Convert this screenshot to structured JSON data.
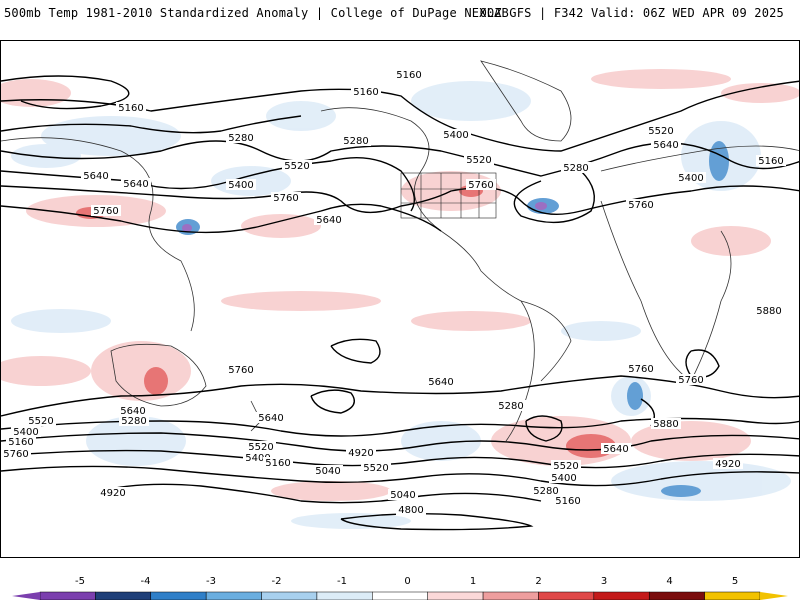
{
  "header": {
    "left_title": "500mb Temp 1981-2010 Standardized Anomaly | College of DuPage NEXLAB",
    "right_title": "00Z GFS | F342 Valid: 06Z WED APR 09 2025"
  },
  "map": {
    "contour_labels": [
      "5160",
      "5160",
      "5160",
      "5160",
      "5280",
      "5280",
      "5280",
      "5400",
      "5400",
      "5400",
      "5520",
      "5520",
      "5520",
      "5640",
      "5640",
      "5640",
      "5760",
      "5760",
      "5760",
      "5760",
      "5760",
      "5880",
      "5760",
      "5640",
      "5520",
      "5400",
      "5160",
      "5760",
      "5640",
      "5280",
      "5640",
      "5520",
      "5400",
      "5160",
      "5040",
      "4920",
      "4920",
      "5520",
      "5280",
      "5640",
      "5760",
      "5880",
      "5640",
      "5520",
      "5400",
      "5280",
      "5160",
      "5040",
      "4920",
      "4800"
    ],
    "anomaly_fields": [
      {
        "name": "negative-anomaly",
        "color": "#3f8fd0"
      },
      {
        "name": "positive-anomaly",
        "color": "#d23a3a"
      }
    ]
  },
  "colorbar": {
    "ticks": [
      "-5",
      "-4",
      "-3",
      "-2",
      "-1",
      "0",
      "1",
      "2",
      "3",
      "4",
      "5"
    ],
    "colors": [
      "#7b3fae",
      "#1f3f78",
      "#2f7fc8",
      "#6aaee0",
      "#a8d0ee",
      "#dcecf7",
      "#ffffff",
      "#fbd8d8",
      "#ee9e9e",
      "#e04848",
      "#c41a1a",
      "#7a0c0c",
      "#f2c200"
    ]
  }
}
